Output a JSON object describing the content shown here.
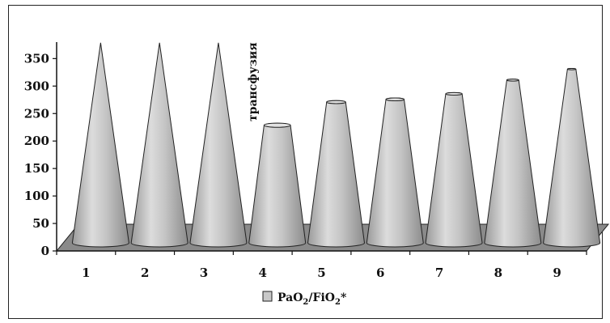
{
  "chart_data": {
    "type": "bar",
    "bar_shape": "cone-3d",
    "categories": [
      "1",
      "2",
      "3",
      "4",
      "5",
      "6",
      "7",
      "8",
      "9"
    ],
    "series": [
      {
        "name": "PaO2/FiO2*",
        "name_base": "PaO",
        "name_sub1": "2",
        "name_mid": "/FiO",
        "name_sub2": "2",
        "name_suffix": "*",
        "values": [
          370,
          370,
          370,
          220,
          262,
          267,
          277,
          302,
          322
        ],
        "color": "#c8c8c8"
      }
    ],
    "yticks": [
      "0",
      "50",
      "100",
      "150",
      "200",
      "250",
      "300",
      "350"
    ],
    "ylim": [
      0,
      380
    ],
    "annotation": {
      "text": "трансфузия"
    },
    "legend_placement": "bottom-center",
    "grid": false
  }
}
